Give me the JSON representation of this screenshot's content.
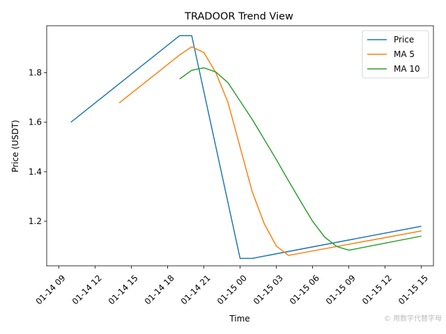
{
  "chart_data": {
    "type": "line",
    "title": "TRADOOR Trend View",
    "xlabel": "Time",
    "ylabel": "Price (USDT)",
    "x_unit": "datetime",
    "xlim": [
      "2025-01-14 08:00",
      "2025-01-15 16:00"
    ],
    "ylim": [
      1.02,
      1.99
    ],
    "x_ticks": [
      {
        "t": "2025-01-14 09:00",
        "label": "01-14 09"
      },
      {
        "t": "2025-01-14 12:00",
        "label": "01-14 12"
      },
      {
        "t": "2025-01-14 15:00",
        "label": "01-14 15"
      },
      {
        "t": "2025-01-14 18:00",
        "label": "01-14 18"
      },
      {
        "t": "2025-01-14 21:00",
        "label": "01-14 21"
      },
      {
        "t": "2025-01-15 00:00",
        "label": "01-15 00"
      },
      {
        "t": "2025-01-15 03:00",
        "label": "01-15 03"
      },
      {
        "t": "2025-01-15 06:00",
        "label": "01-15 06"
      },
      {
        "t": "2025-01-15 09:00",
        "label": "01-15 09"
      },
      {
        "t": "2025-01-15 12:00",
        "label": "01-15 12"
      },
      {
        "t": "2025-01-15 15:00",
        "label": "01-15 15"
      }
    ],
    "y_ticks": [
      {
        "v": 1.2,
        "label": "1.2"
      },
      {
        "v": 1.4,
        "label": "1.4"
      },
      {
        "v": 1.6,
        "label": "1.6"
      },
      {
        "v": 1.8,
        "label": "1.8"
      }
    ],
    "grid": false,
    "legend_position": "top-right",
    "series": [
      {
        "name": "Price",
        "color": "#1f77b4",
        "points": [
          [
            "2025-01-14 10:00",
            1.6
          ],
          [
            "2025-01-14 19:00",
            1.95
          ],
          [
            "2025-01-14 20:00",
            1.95
          ],
          [
            "2025-01-15 00:00",
            1.05
          ],
          [
            "2025-01-15 01:00",
            1.05
          ],
          [
            "2025-01-15 15:00",
            1.18
          ]
        ]
      },
      {
        "name": "MA 5",
        "color": "#ff7f0e",
        "points": [
          [
            "2025-01-14 14:00",
            1.678
          ],
          [
            "2025-01-14 19:00",
            1.872
          ],
          [
            "2025-01-14 20:00",
            1.905
          ],
          [
            "2025-01-14 21:00",
            1.882
          ],
          [
            "2025-01-14 22:00",
            1.8
          ],
          [
            "2025-01-14 23:00",
            1.68
          ],
          [
            "2025-01-15 00:00",
            1.5
          ],
          [
            "2025-01-15 01:00",
            1.32
          ],
          [
            "2025-01-15 02:00",
            1.19
          ],
          [
            "2025-01-15 03:00",
            1.1
          ],
          [
            "2025-01-15 04:00",
            1.062
          ],
          [
            "2025-01-15 15:00",
            1.161
          ]
        ]
      },
      {
        "name": "MA 10",
        "color": "#2ca02c",
        "points": [
          [
            "2025-01-14 19:00",
            1.775
          ],
          [
            "2025-01-14 20:00",
            1.81
          ],
          [
            "2025-01-14 21:00",
            1.82
          ],
          [
            "2025-01-14 22:00",
            1.803
          ],
          [
            "2025-01-14 23:00",
            1.76
          ],
          [
            "2025-01-15 00:00",
            1.686
          ],
          [
            "2025-01-15 01:00",
            1.612
          ],
          [
            "2025-01-15 02:00",
            1.531
          ],
          [
            "2025-01-15 03:00",
            1.449
          ],
          [
            "2025-01-15 04:00",
            1.364
          ],
          [
            "2025-01-15 05:00",
            1.281
          ],
          [
            "2025-01-15 06:00",
            1.2
          ],
          [
            "2025-01-15 07:00",
            1.136
          ],
          [
            "2025-01-15 08:00",
            1.098
          ],
          [
            "2025-01-15 09:00",
            1.083
          ],
          [
            "2025-01-15 15:00",
            1.14
          ]
        ]
      }
    ]
  },
  "watermark": "© 用数字代替字母"
}
